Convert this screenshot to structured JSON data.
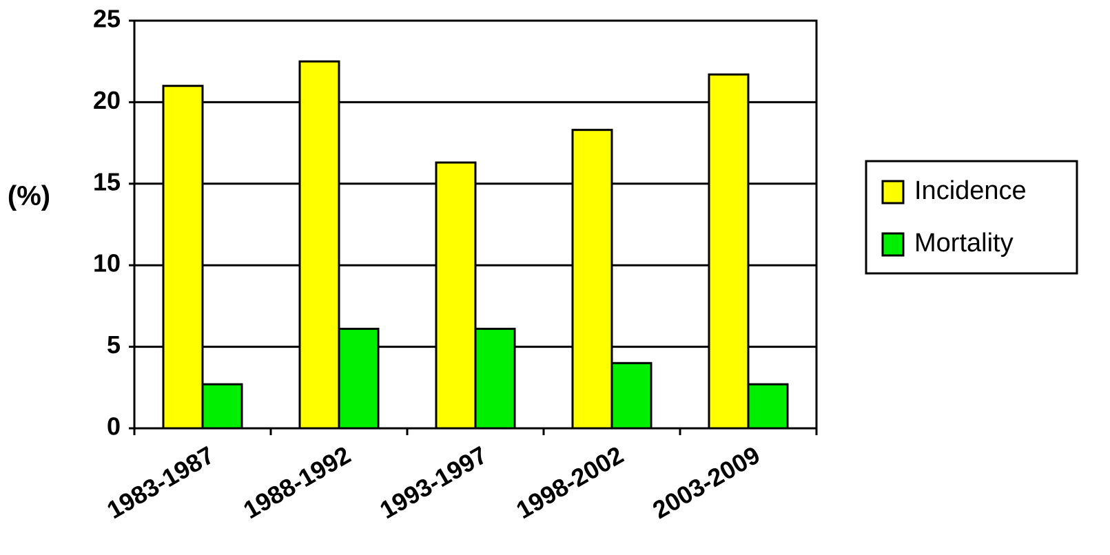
{
  "chart_data": {
    "type": "bar",
    "y_label": "(%)",
    "categories": [
      "1983-1987",
      "1988-1992",
      "1993-1997",
      "1998-2002",
      "2003-2009"
    ],
    "series": [
      {
        "name": "Incidence",
        "color": "#ffff00",
        "values": [
          21.0,
          22.5,
          16.3,
          18.3,
          21.7
        ]
      },
      {
        "name": "Mortality",
        "color": "#00ee00",
        "values": [
          2.7,
          6.1,
          6.1,
          4.0,
          2.7
        ]
      }
    ],
    "ylim": [
      0,
      25
    ],
    "yticks": [
      0,
      5,
      10,
      15,
      20,
      25
    ],
    "grid": true,
    "legend": "right"
  }
}
